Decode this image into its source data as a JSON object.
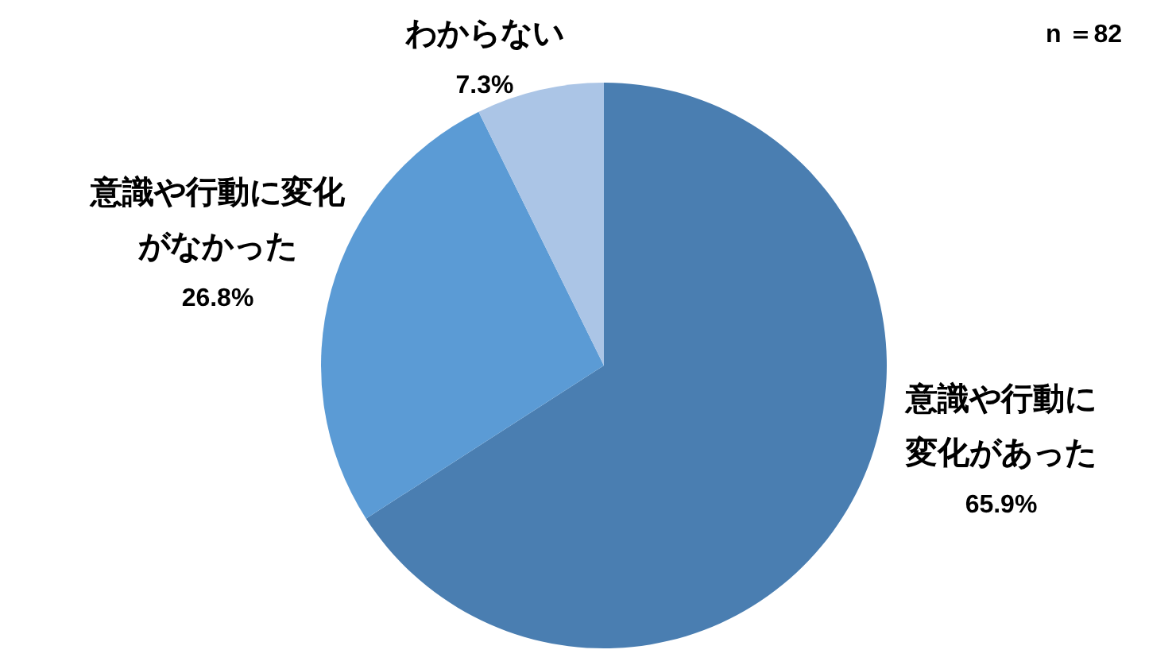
{
  "chart_data": {
    "type": "pie",
    "categories": [
      "意識や行動に変化があった",
      "意識や行動に変化がなかった",
      "わからない"
    ],
    "values": [
      65.9,
      26.8,
      7.3
    ],
    "colors": [
      "#4a7eb1",
      "#5b9bd5",
      "#abc5e6"
    ],
    "value_labels": [
      "65.9%",
      "26.8%",
      "7.3%"
    ],
    "annotations": [
      "n ＝82"
    ]
  }
}
